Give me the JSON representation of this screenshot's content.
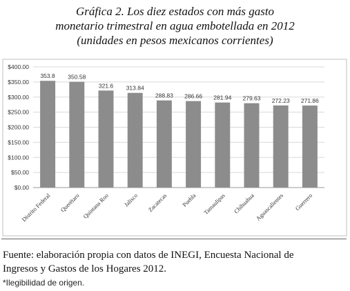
{
  "header": {
    "title_lines": [
      "Gráfica 2. Los diez estados con más gasto",
      "monetario trimestral en agua embotellada en 2012",
      "(unidades en pesos mexicanos corrientes)"
    ]
  },
  "chart_data": {
    "type": "bar",
    "title": "",
    "xlabel": "",
    "ylabel": "",
    "categories": [
      "Distrito Federal",
      "Querétaro",
      "Quintana Roo",
      "Jalisco",
      "Zacatecas",
      "Puebla",
      "Tamaulipas",
      "Chihuahua",
      "Aguascalientes",
      "Guerrero"
    ],
    "values": [
      353.8,
      350.58,
      321.6,
      313.84,
      288.83,
      286.66,
      281.94,
      279.63,
      272.23,
      271.86
    ],
    "data_labels": [
      "353.8",
      "350.58",
      "321.6",
      "313.84",
      "288.83",
      "286.66",
      "281.94",
      "279.63",
      "272.23",
      "271.86"
    ],
    "y_ticks": [
      0,
      50,
      100,
      150,
      200,
      250,
      300,
      350,
      400
    ],
    "y_tick_labels": [
      "$0.00",
      "$50.00",
      "$100.00",
      "$150.00",
      "$200.00",
      "$250.00",
      "$300.00",
      "$350.00",
      "$400.00"
    ],
    "ylim": [
      0,
      400
    ],
    "grid": true,
    "legend": "none",
    "colors": {
      "bar": "#8c8c8c",
      "grid": "#d9d9d9",
      "axis": "#999999",
      "frame": "#bfbfbf"
    }
  },
  "footer": {
    "source_lines": [
      "Fuente: elaboración propia con datos de INEGI, Encuesta Nacional de",
      "Ingresos y Gastos de los Hogares 2012."
    ],
    "note": "*Ilegibilidad de origen."
  }
}
